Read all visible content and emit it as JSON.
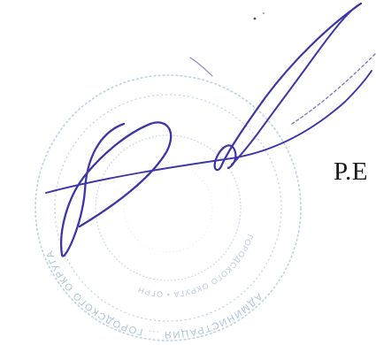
{
  "signature_line": {
    "initials": "Р.Е"
  },
  "stamp": {
    "shape": "round-seal",
    "ink_color": "#8fb0d2",
    "outer_ring_text": "АДМИНИСТРАЦИЯ ... ГОРОДСКОГО ОКРУГА",
    "inner_ring_text": "ГОРОДСКОГО ОКРУГА • ОГРН"
  },
  "signature": {
    "style": "handwritten",
    "ink_color": "#3d36a8"
  }
}
